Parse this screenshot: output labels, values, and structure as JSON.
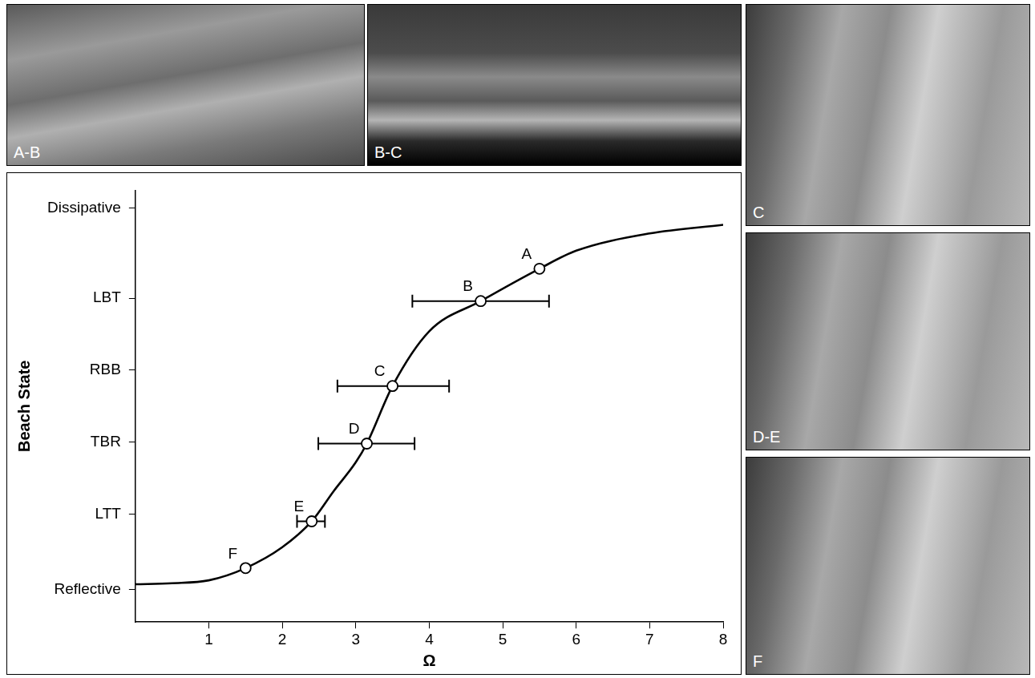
{
  "chart_data": {
    "type": "line",
    "x_label": "Ω",
    "y_label": "Beach State",
    "x": [
      0,
      0.5,
      1,
      1.5,
      2,
      2.4,
      2.7,
      3,
      3.15,
      3.5,
      4,
      4.7,
      5.5,
      6,
      7,
      8
    ],
    "values": [
      0.525,
      0.54,
      0.58,
      0.75,
      1.04,
      1.4,
      1.82,
      2.22,
      2.48,
      3.28,
      4.04,
      4.46,
      4.91,
      5.16,
      5.4,
      5.52
    ],
    "color": "#000000",
    "line_style": "solid",
    "points": {
      "labels": [
        "A",
        "B",
        "C",
        "D",
        "E",
        "F"
      ],
      "x": [
        5.5,
        4.7,
        3.5,
        3.15,
        2.4,
        1.5
      ],
      "values": [
        4.91,
        4.46,
        3.28,
        2.48,
        1.4,
        0.75
      ],
      "error_low": [
        null,
        3.77,
        2.75,
        2.49,
        2.2,
        null
      ],
      "error_high": [
        null,
        5.63,
        4.27,
        3.8,
        2.58,
        null
      ],
      "marker": "circle"
    },
    "xlim": [
      0,
      8
    ],
    "xticks": [
      1,
      2,
      3,
      4,
      5,
      6,
      7,
      8
    ],
    "ylim": [
      0,
      6
    ],
    "yticks": [
      {
        "value": 0.45,
        "label": "Reflective"
      },
      {
        "value": 1.5,
        "label": "LTT"
      },
      {
        "value": 2.5,
        "label": "TBR"
      },
      {
        "value": 3.5,
        "label": "RBB"
      },
      {
        "value": 4.5,
        "label": "LBT"
      },
      {
        "value": 5.75,
        "label": "Dissipative"
      }
    ],
    "grid": false
  },
  "panels": [
    {
      "label": "A-B"
    },
    {
      "label": "B-C"
    },
    {
      "label": "C"
    },
    {
      "label": "D-E"
    },
    {
      "label": "F"
    }
  ]
}
